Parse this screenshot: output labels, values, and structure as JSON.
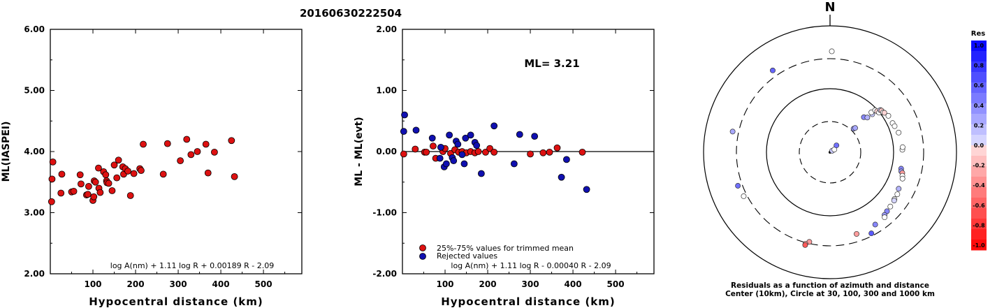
{
  "title": "20160630222504",
  "colors": {
    "trimmed": "#dd1111",
    "rejected": "#1010b0",
    "scale_pos": "#0000ff",
    "scale_neg": "#ff0000"
  },
  "chart_data": [
    {
      "type": "scatter",
      "ylabel": "ML(IASPEI)",
      "xlabel": "Hypocentral distance (km)",
      "formula": "log A(nm) + 1.11 log R + 0.00189 R - 2.09",
      "xlim": [
        0,
        590
      ],
      "ylim": [
        2.0,
        6.0
      ],
      "xticks": [
        "100",
        "200",
        "300",
        "400",
        "500"
      ],
      "yticks": [
        "2.00",
        "3.00",
        "4.00",
        "5.00",
        "6.00"
      ],
      "series": [
        {
          "points": [
            [
              3,
              3.18
            ],
            [
              4,
              3.55
            ],
            [
              6,
              3.83
            ],
            [
              25,
              3.32
            ],
            [
              27,
              3.63
            ],
            [
              50,
              3.34
            ],
            [
              55,
              3.35
            ],
            [
              70,
              3.62
            ],
            [
              72,
              3.47
            ],
            [
              85,
              3.29
            ],
            [
              88,
              3.3
            ],
            [
              90,
              3.43
            ],
            [
              100,
              3.2
            ],
            [
              102,
              3.26
            ],
            [
              103,
              3.52
            ],
            [
              106,
              3.5
            ],
            [
              113,
              3.73
            ],
            [
              114,
              3.4
            ],
            [
              117,
              3.33
            ],
            [
              125,
              3.67
            ],
            [
              130,
              3.62
            ],
            [
              132,
              3.52
            ],
            [
              133,
              3.49
            ],
            [
              137,
              3.48
            ],
            [
              145,
              3.36
            ],
            [
              150,
              3.78
            ],
            [
              156,
              3.57
            ],
            [
              160,
              3.86
            ],
            [
              170,
              3.75
            ],
            [
              172,
              3.63
            ],
            [
              176,
              3.72
            ],
            [
              182,
              3.68
            ],
            [
              188,
              3.28
            ],
            [
              196,
              3.64
            ],
            [
              210,
              3.72
            ],
            [
              213,
              3.69
            ],
            [
              218,
              4.12
            ],
            [
              265,
              3.63
            ],
            [
              275,
              4.13
            ],
            [
              305,
              3.85
            ],
            [
              320,
              4.2
            ],
            [
              330,
              3.95
            ],
            [
              345,
              4.0
            ],
            [
              365,
              4.12
            ],
            [
              370,
              3.65
            ],
            [
              385,
              3.99
            ],
            [
              425,
              4.18
            ],
            [
              432,
              3.59
            ]
          ]
        }
      ]
    },
    {
      "type": "scatter",
      "ylabel": "ML - ML(evt)",
      "xlabel": "Hypocentral distance (km)",
      "annotation": "ML= 3.21",
      "formula": "log A(nm) + 1.11 log R - 0.00040 R - 2.09",
      "xlim": [
        0,
        590
      ],
      "ylim": [
        -2.0,
        2.0
      ],
      "xticks": [
        "100",
        "200",
        "300",
        "400",
        "500"
      ],
      "yticks": [
        "-2.00",
        "-1.00",
        "0.00",
        "1.00",
        "2.00"
      ],
      "reference_line": 0,
      "legend": [
        {
          "label": "25%-75% values for trimmed mean",
          "color": "#dd1111"
        },
        {
          "label": "Rejected values",
          "color": "#1010b0"
        }
      ],
      "series": [
        {
          "name": "25%-75% values for trimmed mean",
          "points": [
            [
              3,
              -0.04
            ],
            [
              30,
              0.04
            ],
            [
              52,
              -0.01
            ],
            [
              56,
              -0.01
            ],
            [
              72,
              0.09
            ],
            [
              78,
              -0.11
            ],
            [
              95,
              0.0
            ],
            [
              100,
              0.05
            ],
            [
              113,
              -0.03
            ],
            [
              123,
              0.03
            ],
            [
              132,
              -0.01
            ],
            [
              140,
              0.0
            ],
            [
              150,
              -0.02
            ],
            [
              160,
              0.0
            ],
            [
              170,
              -0.02
            ],
            [
              178,
              0.0
            ],
            [
              195,
              -0.01
            ],
            [
              205,
              0.05
            ],
            [
              215,
              -0.01
            ],
            [
              300,
              -0.04
            ],
            [
              330,
              -0.02
            ],
            [
              345,
              -0.01
            ],
            [
              363,
              0.06
            ],
            [
              422,
              -0.01
            ]
          ]
        },
        {
          "name": "Rejected values",
          "points": [
            [
              3,
              0.33
            ],
            [
              5,
              0.6
            ],
            [
              32,
              0.35
            ],
            [
              70,
              0.22
            ],
            [
              88,
              -0.11
            ],
            [
              90,
              0.07
            ],
            [
              98,
              -0.25
            ],
            [
              103,
              -0.2
            ],
            [
              110,
              0.27
            ],
            [
              117,
              -0.1
            ],
            [
              120,
              -0.15
            ],
            [
              126,
              0.17
            ],
            [
              130,
              0.12
            ],
            [
              140,
              -0.05
            ],
            [
              145,
              -0.2
            ],
            [
              148,
              0.22
            ],
            [
              160,
              0.27
            ],
            [
              170,
              0.15
            ],
            [
              174,
              0.1
            ],
            [
              185,
              -0.36
            ],
            [
              215,
              0.42
            ],
            [
              262,
              -0.2
            ],
            [
              275,
              0.28
            ],
            [
              310,
              0.25
            ],
            [
              373,
              -0.42
            ],
            [
              385,
              -0.13
            ],
            [
              432,
              -0.62
            ]
          ]
        }
      ]
    },
    {
      "type": "scatter",
      "title": "N",
      "caption_line1": "Residuals as a function of azimuth and distance",
      "caption_line2": "Center (10km), Circle at 30, 100, 300 and 1000 km",
      "colorbar_title": "Res",
      "colorbar_ticks": [
        "1.0",
        "0.8",
        "0.6",
        "0.4",
        "0.2",
        "0.0",
        "-0.2",
        "-0.4",
        "-0.6",
        "-0.8",
        "-1.0"
      ],
      "series": [
        {
          "points": [
            [
              55,
              0.1
            ],
            [
              58,
              0.0
            ],
            [
              43,
              0.5
            ],
            [
              45,
              0.3
            ],
            [
              46,
              0.25
            ],
            [
              44,
              0.4
            ],
            [
              47,
              0.2
            ],
            [
              48,
              0.1
            ],
            [
              46,
              0.0
            ],
            [
              47,
              0.0
            ],
            [
              49,
              -0.05
            ],
            [
              51,
              0.0
            ],
            [
              50,
              0.1
            ],
            [
              51,
              -0.1
            ],
            [
              53,
              0.0
            ],
            [
              54,
              -0.05
            ],
            [
              58,
              0.0
            ],
            [
              65,
              0.0
            ],
            [
              68,
              0.0
            ],
            [
              74,
              0.0
            ],
            [
              88,
              0.0
            ],
            [
              86,
              0.0
            ],
            [
              103,
              0.4
            ],
            [
              105,
              0.3
            ],
            [
              106,
              -0.3
            ],
            [
              108,
              0.0
            ],
            [
              110,
              0.0
            ],
            [
              118,
              0.2
            ],
            [
              122,
              0.0
            ],
            [
              126,
              0.0
            ],
            [
              127,
              0.05
            ],
            [
              132,
              0.0
            ],
            [
              136,
              0.4
            ],
            [
              139,
              0.3
            ],
            [
              140,
              0.0
            ],
            [
              148,
              0.4
            ],
            [
              162,
              -0.3
            ],
            [
              153,
              0.6
            ],
            [
              193,
              -0.3
            ],
            [
              195,
              -0.3
            ],
            [
              195,
              -0.6
            ],
            [
              243,
              0.0
            ],
            [
              250,
              0.5
            ],
            [
              282,
              0.25
            ],
            [
              325,
              0.55
            ],
            [
              1,
              0.0
            ]
          ]
        }
      ]
    }
  ]
}
